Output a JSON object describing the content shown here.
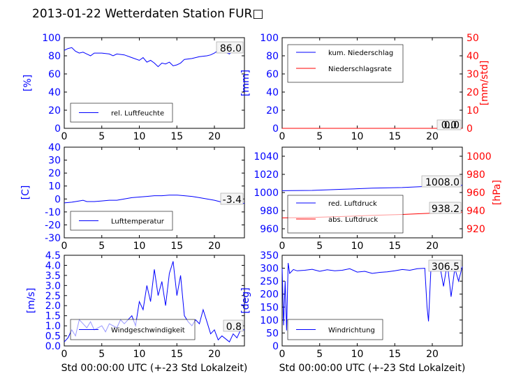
{
  "page": {
    "title": "2013-01-22 Wetterdaten Station FUR□"
  },
  "chart_data": [
    {
      "id": "humidity",
      "type": "line",
      "x_range": [
        0,
        24
      ],
      "xticks": [
        0,
        5,
        10,
        15,
        20
      ],
      "left_axis": {
        "label": "[%]",
        "range": [
          0,
          100
        ],
        "ticks": [
          0,
          20,
          40,
          60,
          80,
          100
        ],
        "color": "#0000ff"
      },
      "series": [
        {
          "name": "rel. Luftfeuchte",
          "color": "#0000ff",
          "axis": "left",
          "points": [
            [
              0,
              86
            ],
            [
              0.5,
              88
            ],
            [
              1,
              89
            ],
            [
              1.5,
              85
            ],
            [
              2,
              83
            ],
            [
              2.5,
              84
            ],
            [
              3,
              82
            ],
            [
              3.5,
              80
            ],
            [
              4,
              83
            ],
            [
              5,
              83
            ],
            [
              6,
              82
            ],
            [
              6.5,
              80
            ],
            [
              7,
              82
            ],
            [
              8,
              81
            ],
            [
              9,
              78
            ],
            [
              10,
              75
            ],
            [
              10.5,
              78
            ],
            [
              11,
              73
            ],
            [
              11.5,
              75
            ],
            [
              12,
              72
            ],
            [
              12.5,
              68
            ],
            [
              13,
              72
            ],
            [
              13.5,
              71
            ],
            [
              14,
              73
            ],
            [
              14.5,
              69
            ],
            [
              15,
              70
            ],
            [
              15.5,
              72
            ],
            [
              16,
              76
            ],
            [
              17,
              77
            ],
            [
              18,
              79
            ],
            [
              19,
              80
            ],
            [
              19.5,
              81
            ],
            [
              20,
              83
            ],
            [
              20.5,
              86
            ],
            [
              21,
              87
            ],
            [
              21.5,
              84
            ],
            [
              22,
              82
            ],
            [
              22.5,
              86
            ],
            [
              23,
              85
            ],
            [
              23.5,
              86
            ]
          ]
        }
      ],
      "annotation": "86.0",
      "legend_position": "lower-left"
    },
    {
      "id": "precipitation",
      "type": "line",
      "x_range": [
        0,
        24
      ],
      "xticks": [
        0,
        5,
        10,
        15,
        20
      ],
      "left_axis": {
        "label": "[mm]",
        "range": [
          0,
          100
        ],
        "ticks": [
          0,
          20,
          40,
          60,
          80,
          100
        ],
        "color": "#0000ff"
      },
      "right_axis": {
        "label": "[mm/std]",
        "range": [
          0,
          50
        ],
        "ticks": [
          0,
          10,
          20,
          30,
          40,
          50
        ],
        "color": "#ff0000"
      },
      "series": [
        {
          "name": "kum. Niederschlag",
          "color": "#0000ff",
          "axis": "left",
          "points": [
            [
              0,
              0
            ],
            [
              24,
              0
            ]
          ]
        },
        {
          "name": "Niederschlagsrate",
          "color": "#ff0000",
          "axis": "right",
          "points": [
            [
              0,
              0
            ],
            [
              24,
              0
            ]
          ]
        }
      ],
      "annotation": "0.0",
      "annotation_right": "0.0",
      "legend_position": "upper-left"
    },
    {
      "id": "temperature",
      "type": "line",
      "x_range": [
        0,
        24
      ],
      "xticks": [
        0,
        5,
        10,
        15,
        20
      ],
      "left_axis": {
        "label": "[C]",
        "range": [
          -30,
          40
        ],
        "ticks": [
          -30,
          -20,
          -10,
          0,
          10,
          20,
          30,
          40
        ],
        "color": "#0000ff"
      },
      "series": [
        {
          "name": "Lufttemperatur",
          "color": "#0000ff",
          "axis": "left",
          "points": [
            [
              0,
              -3
            ],
            [
              1,
              -2.5
            ],
            [
              2,
              -1.5
            ],
            [
              2.5,
              -1
            ],
            [
              3,
              -2
            ],
            [
              4,
              -2
            ],
            [
              5,
              -1.5
            ],
            [
              6,
              -1
            ],
            [
              7,
              -1
            ],
            [
              8,
              0
            ],
            [
              9,
              1
            ],
            [
              10,
              1.5
            ],
            [
              11,
              2
            ],
            [
              12,
              2.5
            ],
            [
              13,
              2.5
            ],
            [
              14,
              3
            ],
            [
              15,
              3
            ],
            [
              16,
              2.5
            ],
            [
              17,
              2
            ],
            [
              18,
              1
            ],
            [
              19,
              0
            ],
            [
              20,
              -1
            ],
            [
              21,
              -2.5
            ],
            [
              22,
              -3
            ],
            [
              23,
              -3.2
            ],
            [
              24,
              -3.4
            ]
          ]
        }
      ],
      "annotation": "-3.4",
      "legend_position": "lower-left"
    },
    {
      "id": "pressure",
      "type": "line",
      "x_range": [
        0,
        24
      ],
      "xticks": [
        0,
        5,
        10,
        15,
        20
      ],
      "left_axis": {
        "label": "",
        "range": [
          950,
          1050
        ],
        "ticks": [
          960,
          980,
          1000,
          1020,
          1040
        ],
        "color": "#0000ff"
      },
      "right_axis": {
        "label": "[hPa]",
        "range": [
          910,
          1010
        ],
        "ticks": [
          920,
          940,
          960,
          980,
          1000
        ],
        "color": "#ff0000"
      },
      "series": [
        {
          "name": "red. Luftdruck",
          "color": "#0000ff",
          "axis": "left",
          "points": [
            [
              0,
              1002
            ],
            [
              4,
              1002.3
            ],
            [
              8,
              1003.5
            ],
            [
              12,
              1004.8
            ],
            [
              16,
              1005.5
            ],
            [
              20,
              1007
            ],
            [
              24,
              1008
            ]
          ]
        },
        {
          "name": "abs. Luftdruck",
          "color": "#ff0000",
          "axis": "right",
          "points": [
            [
              0,
              932
            ],
            [
              4,
              932.5
            ],
            [
              8,
              933.5
            ],
            [
              12,
              934.8
            ],
            [
              16,
              935.8
            ],
            [
              20,
              937.2
            ],
            [
              24,
              938.2
            ]
          ]
        }
      ],
      "annotation": "1008.0",
      "annotation_right": "938.2",
      "legend_position": "lower-left"
    },
    {
      "id": "windspeed",
      "type": "line",
      "x_range": [
        0,
        24
      ],
      "xticks": [
        0,
        5,
        10,
        15,
        20
      ],
      "left_axis": {
        "label": "[m/s]",
        "range": [
          0,
          4.5
        ],
        "ticks": [
          0.0,
          0.5,
          1.0,
          1.5,
          2.0,
          2.5,
          3.0,
          3.5,
          4.0,
          4.5
        ],
        "color": "#0000ff"
      },
      "series": [
        {
          "name": "Windgeschwindigkeit",
          "color": "#0000ff",
          "axis": "left",
          "points": [
            [
              0,
              0.2
            ],
            [
              0.5,
              0.4
            ],
            [
              1,
              0.8
            ],
            [
              1.5,
              0.5
            ],
            [
              2,
              1.3
            ],
            [
              2.5,
              1.1
            ],
            [
              3,
              0.9
            ],
            [
              3.5,
              1.2
            ],
            [
              4,
              0.8
            ],
            [
              5,
              1.0
            ],
            [
              5.5,
              0.7
            ],
            [
              6,
              1.1
            ],
            [
              7,
              0.9
            ],
            [
              7.5,
              1.3
            ],
            [
              8,
              1.1
            ],
            [
              9,
              1.5
            ],
            [
              9.5,
              1.0
            ],
            [
              10,
              2.2
            ],
            [
              10.5,
              1.8
            ],
            [
              11,
              3.0
            ],
            [
              11.5,
              2.2
            ],
            [
              12,
              3.8
            ],
            [
              12.5,
              2.5
            ],
            [
              13,
              3.2
            ],
            [
              13.5,
              2.0
            ],
            [
              14,
              3.6
            ],
            [
              14.5,
              4.2
            ],
            [
              15,
              2.5
            ],
            [
              15.5,
              3.5
            ],
            [
              16,
              1.5
            ],
            [
              16.5,
              1.2
            ],
            [
              17,
              1.0
            ],
            [
              17.5,
              1.3
            ],
            [
              18,
              1.1
            ],
            [
              18.5,
              1.8
            ],
            [
              19,
              1.2
            ],
            [
              19.5,
              0.6
            ],
            [
              20,
              0.8
            ],
            [
              20.5,
              0.3
            ],
            [
              21,
              0.5
            ],
            [
              22,
              0.2
            ],
            [
              22.5,
              0.6
            ],
            [
              23,
              0.4
            ],
            [
              23.5,
              0.8
            ],
            [
              24,
              0.8
            ]
          ]
        }
      ],
      "annotation": "0.8",
      "xlabel": "Std 00:00:00 UTC (+-23 Std Lokalzeit)",
      "legend_position": "lower-left"
    },
    {
      "id": "winddir",
      "type": "line",
      "x_range": [
        0,
        24
      ],
      "xticks": [
        0,
        5,
        10,
        15,
        20
      ],
      "left_axis": {
        "label": "[deg]",
        "range": [
          0,
          350
        ],
        "ticks": [
          0,
          50,
          100,
          150,
          200,
          250,
          300,
          350
        ],
        "color": "#0000ff"
      },
      "series": [
        {
          "name": "Windrichtung",
          "color": "#0000ff",
          "axis": "left",
          "points": [
            [
              0,
              300
            ],
            [
              0.2,
              80
            ],
            [
              0.4,
              250
            ],
            [
              0.6,
              60
            ],
            [
              0.8,
              320
            ],
            [
              1,
              280
            ],
            [
              1.5,
              295
            ],
            [
              2,
              290
            ],
            [
              3,
              292
            ],
            [
              4,
              296
            ],
            [
              5,
              288
            ],
            [
              6,
              294
            ],
            [
              7,
              290
            ],
            [
              8,
              292
            ],
            [
              9,
              298
            ],
            [
              10,
              285
            ],
            [
              11,
              288
            ],
            [
              12,
              280
            ],
            [
              13,
              284
            ],
            [
              14,
              286
            ],
            [
              15,
              290
            ],
            [
              16,
              295
            ],
            [
              17,
              292
            ],
            [
              18,
              298
            ],
            [
              19,
              300
            ],
            [
              19.3,
              150
            ],
            [
              19.5,
              95
            ],
            [
              19.8,
              290
            ],
            [
              20,
              300
            ],
            [
              21,
              310
            ],
            [
              21.5,
              230
            ],
            [
              22,
              320
            ],
            [
              22.5,
              190
            ],
            [
              23,
              300
            ],
            [
              23.5,
              250
            ],
            [
              24,
              306.5
            ]
          ]
        }
      ],
      "annotation": "306.5",
      "xlabel": "Std 00:00:00 UTC (+-23 Std Lokalzeit)",
      "legend_position": "lower-left"
    }
  ]
}
